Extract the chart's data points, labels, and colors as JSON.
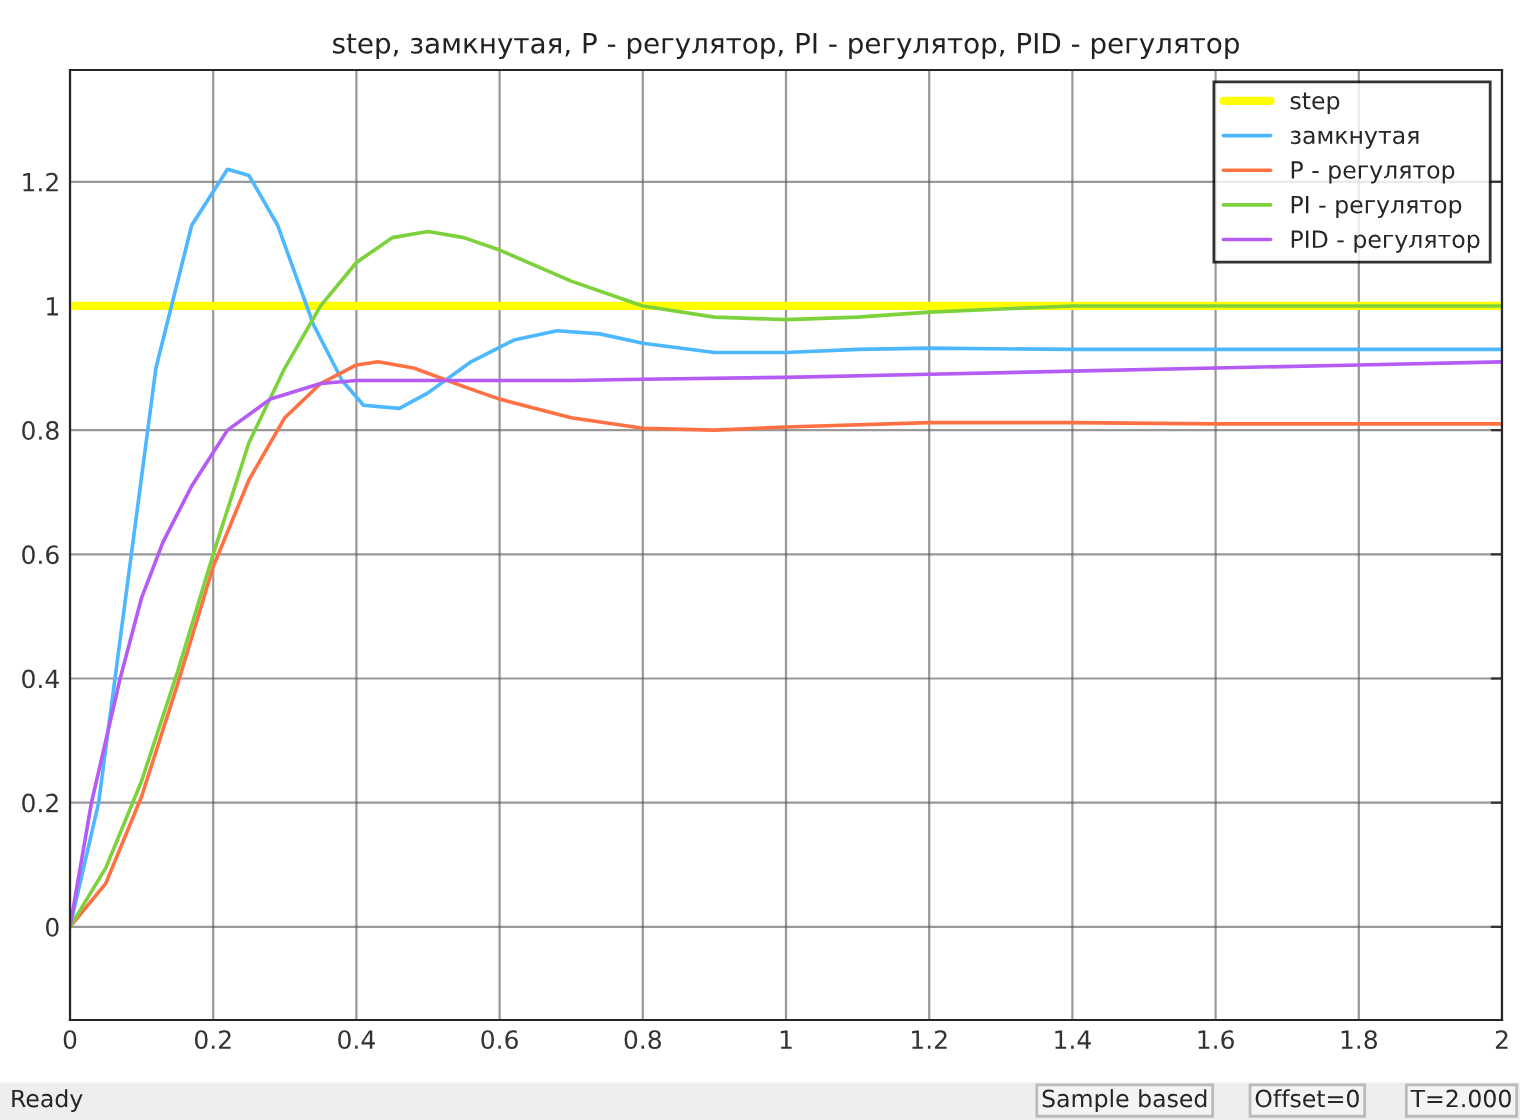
{
  "chart_data": {
    "type": "line",
    "title": "step, замкнутая, P - регулятор, PI - регулятор, PID - регулятор",
    "xlim": [
      0,
      2
    ],
    "xticks": [
      0,
      0.2,
      0.4,
      0.6,
      0.8,
      1,
      1.2,
      1.4,
      1.6,
      1.8,
      2
    ],
    "ylim": [
      -0.15,
      1.38
    ],
    "yticks": [
      0,
      0.2,
      0.4,
      0.6,
      0.8,
      1,
      1.2
    ],
    "grid": true,
    "legend": "top right",
    "line_style": "solid",
    "annotations": [
      "Ready",
      "Sample based",
      "Offset=0",
      "T=2.000"
    ],
    "series": [
      {
        "name": "step",
        "type": "step",
        "color": "#ffff00",
        "x": [
          0,
          2
        ],
        "values": [
          1,
          1
        ]
      },
      {
        "name": "замкнутая",
        "color": "#4db8ff",
        "x": [
          0,
          0.04,
          0.08,
          0.12,
          0.17,
          0.22,
          0.25,
          0.29,
          0.34,
          0.38,
          0.41,
          0.46,
          0.5,
          0.56,
          0.62,
          0.68,
          0.74,
          0.8,
          0.9,
          1.0,
          1.1,
          1.2,
          1.4,
          1.6,
          1.8,
          2.0
        ],
        "values": [
          0,
          0.2,
          0.55,
          0.9,
          1.13,
          1.22,
          1.21,
          1.13,
          0.97,
          0.88,
          0.84,
          0.835,
          0.86,
          0.91,
          0.945,
          0.96,
          0.955,
          0.94,
          0.925,
          0.925,
          0.93,
          0.932,
          0.93,
          0.93,
          0.93,
          0.93
        ]
      },
      {
        "name": "P - регулятор",
        "color": "#ff7043",
        "x": [
          0,
          0.05,
          0.1,
          0.15,
          0.2,
          0.25,
          0.3,
          0.35,
          0.4,
          0.43,
          0.48,
          0.55,
          0.6,
          0.7,
          0.8,
          0.9,
          1.0,
          1.2,
          1.4,
          1.6,
          1.8,
          2.0
        ],
        "values": [
          0,
          0.07,
          0.21,
          0.39,
          0.58,
          0.72,
          0.82,
          0.875,
          0.905,
          0.91,
          0.9,
          0.87,
          0.85,
          0.82,
          0.803,
          0.8,
          0.805,
          0.812,
          0.812,
          0.81,
          0.81,
          0.81
        ]
      },
      {
        "name": "PI - регулятор",
        "color": "#7dd23c",
        "x": [
          0,
          0.05,
          0.1,
          0.15,
          0.2,
          0.25,
          0.3,
          0.35,
          0.4,
          0.45,
          0.5,
          0.55,
          0.6,
          0.7,
          0.8,
          0.9,
          1.0,
          1.1,
          1.2,
          1.4,
          1.6,
          2.0
        ],
        "values": [
          0,
          0.095,
          0.235,
          0.41,
          0.6,
          0.78,
          0.9,
          1.0,
          1.07,
          1.11,
          1.12,
          1.11,
          1.09,
          1.04,
          1.0,
          0.982,
          0.978,
          0.982,
          0.99,
          1.0,
          1.0,
          1.0
        ]
      },
      {
        "name": "PID - регулятор",
        "color": "#b45cf5",
        "x": [
          0,
          0.03,
          0.07,
          0.1,
          0.13,
          0.17,
          0.22,
          0.28,
          0.35,
          0.4,
          0.5,
          0.7,
          0.8,
          1.0,
          1.2,
          1.4,
          1.6,
          1.8,
          2.0
        ],
        "values": [
          0,
          0.2,
          0.4,
          0.53,
          0.62,
          0.71,
          0.8,
          0.85,
          0.875,
          0.88,
          0.88,
          0.88,
          0.882,
          0.885,
          0.89,
          0.895,
          0.9,
          0.905,
          0.91
        ]
      }
    ]
  }
}
